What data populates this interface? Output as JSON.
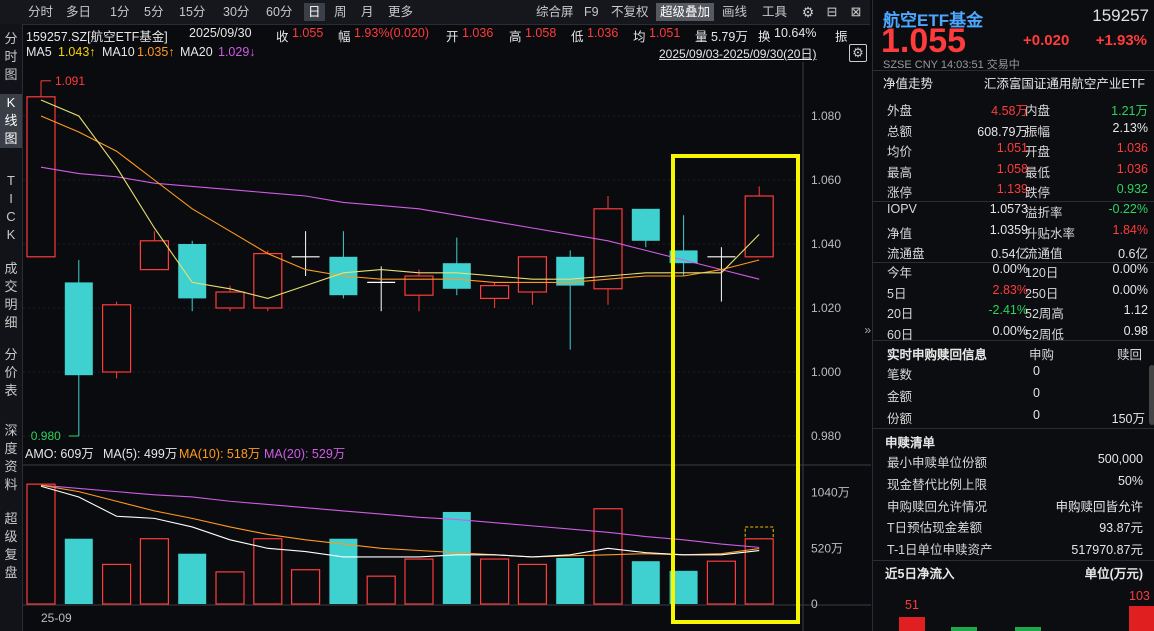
{
  "toolbar": {
    "periods": [
      "分时",
      "多日",
      "1分",
      "5分",
      "15分",
      "30分",
      "60分",
      "日",
      "周",
      "月",
      "更多"
    ],
    "active_period": "日",
    "right_items": [
      "综合屏",
      "F9",
      "不复权",
      "超级叠加",
      "画线",
      "工具"
    ]
  },
  "leftnav": [
    "分时图",
    "K线图",
    "TICK",
    "成交明细",
    "分价表",
    "深度资料",
    "超级复盘"
  ],
  "header": {
    "title": "159257.SZ[航空ETF基金]",
    "date": "2025/09/30",
    "close_label": "收",
    "close": "1.055",
    "change_label": "幅",
    "change": "1.93%(0.020)",
    "open_label": "开",
    "open": "1.036",
    "high_label": "高",
    "high": "1.058",
    "low_label": "低",
    "low": "1.036",
    "avg_label": "均",
    "avg": "1.051",
    "vol_label": "量",
    "vol": "5.79万",
    "turnover_label": "换",
    "turnover": "10.64%",
    "amp_label": "振",
    "ma5_label": "MA5",
    "ma5": "1.043↑",
    "ma10_label": "MA10",
    "ma10": "1.035↑",
    "ma20_label": "MA20",
    "ma20": "1.029↓",
    "range": "2025/09/03-2025/09/30(20日)"
  },
  "chart_data": {
    "type": "candlestick",
    "y_ticks": [
      "1.080",
      "1.060",
      "1.040",
      "1.020",
      "1.000",
      "0.980"
    ],
    "ylim": [
      0.975,
      1.095
    ],
    "max_label": "1.091",
    "min_label": "0.980",
    "candles": [
      {
        "o": 1.036,
        "c": 1.086,
        "h": 1.091,
        "l": 1.036
      },
      {
        "o": 1.028,
        "c": 0.999,
        "h": 1.035,
        "l": 0.98
      },
      {
        "o": 1.0,
        "c": 1.021,
        "h": 1.022,
        "l": 0.998
      },
      {
        "o": 1.032,
        "c": 1.041,
        "h": 1.044,
        "l": 1.032
      },
      {
        "o": 1.04,
        "c": 1.023,
        "h": 1.041,
        "l": 1.019
      },
      {
        "o": 1.02,
        "c": 1.025,
        "h": 1.027,
        "l": 1.019
      },
      {
        "o": 1.02,
        "c": 1.037,
        "h": 1.038,
        "l": 1.019
      },
      {
        "o": 1.036,
        "c": 1.036,
        "h": 1.044,
        "l": 1.03
      },
      {
        "o": 1.036,
        "c": 1.024,
        "h": 1.044,
        "l": 1.023
      },
      {
        "o": 1.028,
        "c": 1.028,
        "h": 1.033,
        "l": 1.019
      },
      {
        "o": 1.024,
        "c": 1.03,
        "h": 1.032,
        "l": 1.019
      },
      {
        "o": 1.034,
        "c": 1.026,
        "h": 1.042,
        "l": 1.024
      },
      {
        "o": 1.023,
        "c": 1.027,
        "h": 1.028,
        "l": 1.02
      },
      {
        "o": 1.025,
        "c": 1.036,
        "h": 1.036,
        "l": 1.021
      },
      {
        "o": 1.036,
        "c": 1.027,
        "h": 1.038,
        "l": 1.007
      },
      {
        "o": 1.026,
        "c": 1.051,
        "h": 1.055,
        "l": 1.021
      },
      {
        "o": 1.051,
        "c": 1.041,
        "h": 1.051,
        "l": 1.039
      },
      {
        "o": 1.038,
        "c": 1.034,
        "h": 1.049,
        "l": 1.03
      },
      {
        "o": 1.036,
        "c": 1.036,
        "h": 1.039,
        "l": 1.022
      },
      {
        "o": 1.036,
        "c": 1.055,
        "h": 1.058,
        "l": 1.036
      }
    ],
    "ma5": [
      1.085,
      1.08,
      1.064,
      1.045,
      1.028,
      1.026,
      1.023,
      1.027,
      1.031,
      1.032,
      1.031,
      1.031,
      1.03,
      1.029,
      1.029,
      1.03,
      1.031,
      1.031,
      1.031,
      1.043
    ],
    "ma10": [
      1.08,
      1.075,
      1.069,
      1.06,
      1.051,
      1.044,
      1.037,
      1.032,
      1.03,
      1.029,
      1.029,
      1.029,
      1.028,
      1.028,
      1.028,
      1.029,
      1.03,
      1.03,
      1.032,
      1.035
    ],
    "ma20": [
      1.064,
      1.062,
      1.061,
      1.059,
      1.058,
      1.057,
      1.056,
      1.055,
      1.053,
      1.052,
      1.051,
      1.049,
      1.047,
      1.045,
      1.043,
      1.041,
      1.038,
      1.035,
      1.032,
      1.029
    ],
    "vol_header": {
      "amo": "AMO: 609万",
      "ma5": "MA(5): 499万",
      "ma10": "MA(10): 518万",
      "ma20": "MA(20): 529万"
    },
    "vol_ticks": [
      "1040万",
      "520万",
      "0"
    ],
    "vol_max": 1140,
    "volumes": [
      1120,
      610,
      370,
      610,
      470,
      300,
      610,
      320,
      610,
      260,
      420,
      860,
      420,
      370,
      430,
      890,
      400,
      310,
      400,
      609
    ],
    "vol_ma5": [
      1100,
      1000,
      820,
      800,
      720,
      600,
      520,
      490,
      440,
      440,
      440,
      460,
      460,
      440,
      460,
      520,
      480,
      460,
      460,
      499
    ],
    "vol_ma10": [
      1110,
      1050,
      960,
      870,
      800,
      720,
      650,
      600,
      560,
      520,
      500,
      480,
      460,
      440,
      450,
      460,
      470,
      460,
      470,
      518
    ],
    "vol_ma20": [
      1110,
      1080,
      1050,
      1020,
      1000,
      960,
      930,
      900,
      870,
      840,
      810,
      790,
      760,
      730,
      700,
      670,
      630,
      600,
      560,
      529
    ],
    "x_label": "25-09"
  },
  "panel": {
    "name": "航空ETF基金",
    "code": "159257",
    "price": "1.055",
    "chg": "+0.020",
    "pct": "+1.93%",
    "market": "SZSE  CNY  14:03:51  交易中",
    "nav_tab": "净值走势",
    "fund_full": "汇添富国证通用航空产业ETF",
    "rows": [
      [
        "外盘",
        "4.58万",
        "内盘",
        "1.21万"
      ],
      [
        "总额",
        "608.79万",
        "振幅",
        "2.13%"
      ],
      [
        "均价",
        "1.051",
        "开盘",
        "1.036"
      ],
      [
        "最高",
        "1.058",
        "最低",
        "1.036"
      ],
      [
        "涨停",
        "1.139",
        "跌停",
        "0.932"
      ]
    ],
    "rows2": [
      [
        "IOPV",
        "1.0573",
        "溢折率",
        "-0.22%"
      ],
      [
        "净值",
        "1.0359",
        "升贴水率",
        "1.84%"
      ],
      [
        "流通盘",
        "0.54亿",
        "流通值",
        "0.6亿"
      ]
    ],
    "perf": [
      [
        "今年",
        "0.00%",
        "120日",
        "0.00%"
      ],
      [
        "5日",
        "2.83%",
        "250日",
        "0.00%"
      ],
      [
        "20日",
        "-2.41%",
        "52周高",
        "1.12"
      ],
      [
        "60日",
        "0.00%",
        "52周低",
        "0.98"
      ]
    ],
    "subscribe_title": "实时申购赎回信息",
    "subscribe_cols": [
      "申购",
      "赎回"
    ],
    "subscribe_rows": [
      [
        "笔数",
        "0",
        ""
      ],
      [
        "金额",
        "0",
        ""
      ],
      [
        "份额",
        "0",
        "150万"
      ]
    ],
    "list_title": "申赎清单",
    "list_rows": [
      [
        "最小申赎单位份额",
        "500,000"
      ],
      [
        "现金替代比例上限",
        "50%"
      ],
      [
        "申购赎回允许情况",
        "申购赎回皆允许"
      ],
      [
        "T日预估现金差额",
        "93.87元"
      ],
      [
        "T-1日单位申赎资产",
        "517970.87元"
      ]
    ],
    "flow_title": "近5日净流入",
    "flow_unit": "单位(万元)",
    "flow_values": [
      "51",
      "103"
    ]
  },
  "colors": {
    "up": "#ff3b3b",
    "down": "#3fd0d0",
    "ma5": "#ffffff",
    "ma10": "#ff9a1f",
    "ma20": "#d05ce6",
    "highlight": "#f7f700"
  }
}
